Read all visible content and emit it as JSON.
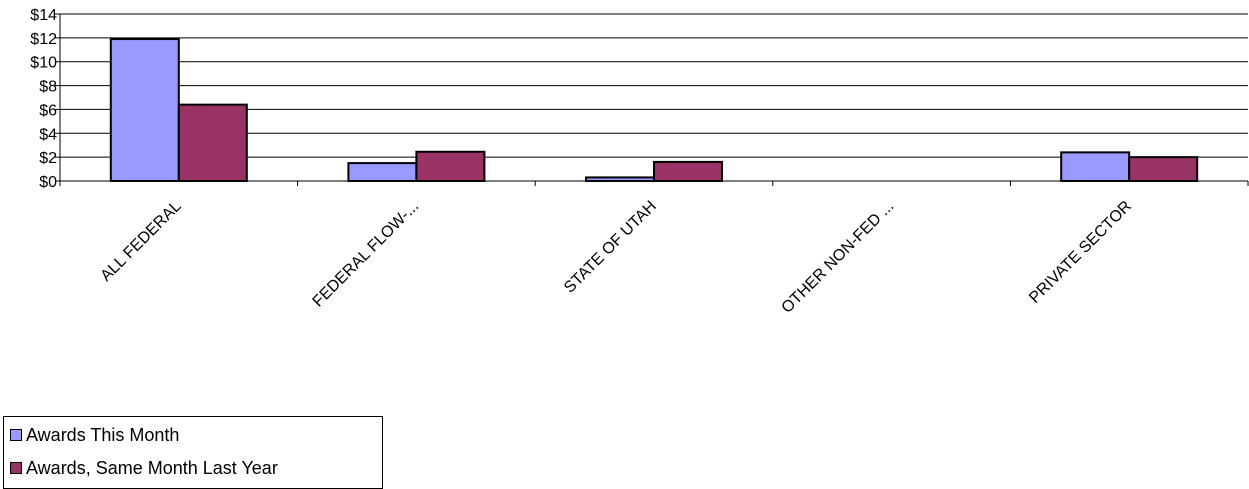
{
  "chart_data": {
    "type": "bar",
    "categories": [
      "ALL FEDERAL",
      "FEDERAL FLOW-...",
      "STATE OF UTAH",
      "OTHER NON-FED ...",
      "PRIVATE SECTOR"
    ],
    "series": [
      {
        "name": "Awards This Month",
        "color": "#9999ff",
        "values": [
          11.9,
          1.5,
          0.3,
          0,
          2.4
        ]
      },
      {
        "name": "Awards, Same Month Last Year",
        "color": "#993366",
        "values": [
          6.4,
          2.45,
          1.6,
          0,
          2.0
        ]
      }
    ],
    "yticks": [
      "$0",
      "$2",
      "$4",
      "$6",
      "$8",
      "$10",
      "$12",
      "$14"
    ],
    "ylim": [
      0,
      14
    ],
    "ylabel": "",
    "xlabel": "",
    "grid": true,
    "legend": "bottom-left"
  }
}
